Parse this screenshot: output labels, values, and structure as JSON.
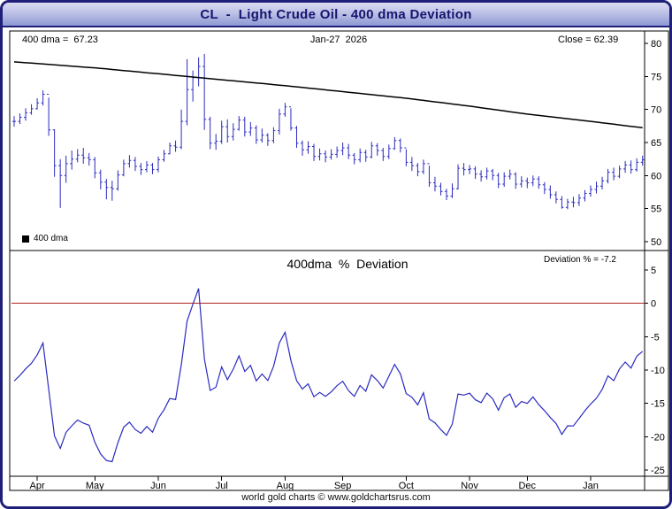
{
  "window": {
    "title": "CL  -  Light Crude Oil - 400 dma Deviation",
    "footer": "world gold charts © www.goldchartsrus.com"
  },
  "chart_data": [
    {
      "type": "ohlc",
      "panel": "price",
      "title": "CL - Light Crude Oil daily bars with 400 dma",
      "labels": {
        "ma": "400 dma =  67.23",
        "date": "Jan-27  2026",
        "close": "Close = 62.39",
        "legend": "400 dma"
      },
      "ylim": [
        50,
        80
      ],
      "yticks": [
        80,
        75,
        70,
        65,
        60,
        55,
        50
      ],
      "colors": {
        "bar": "#2b2bc0",
        "ma": "#000000"
      },
      "months": [
        {
          "label": "Apr",
          "index": 4
        },
        {
          "label": "May",
          "index": 14
        },
        {
          "label": "Jun",
          "index": 25
        },
        {
          "label": "Jul",
          "index": 36
        },
        {
          "label": "Aug",
          "index": 47
        },
        {
          "label": "Sep",
          "index": 57
        },
        {
          "label": "Oct",
          "index": 68
        },
        {
          "label": "Nov",
          "index": 79
        },
        {
          "label": "Dec",
          "index": 89
        },
        {
          "label": "Jan",
          "index": 100
        }
      ],
      "bars_format": "[high, low, close] per bar, open drawn as previous close",
      "bars": [
        [
          69.0,
          67.4,
          68.2
        ],
        [
          69.4,
          67.8,
          68.8
        ],
        [
          70.2,
          68.3,
          69.5
        ],
        [
          70.8,
          69.2,
          70.1
        ],
        [
          71.7,
          70.0,
          71.0
        ],
        [
          72.9,
          70.6,
          72.3
        ],
        [
          71.8,
          66.0,
          66.9
        ],
        [
          67.0,
          59.8,
          61.5
        ],
        [
          62.5,
          55.1,
          60.0
        ],
        [
          63.0,
          58.9,
          61.8
        ],
        [
          63.8,
          60.9,
          62.5
        ],
        [
          64.0,
          62.0,
          63.1
        ],
        [
          64.2,
          61.8,
          62.7
        ],
        [
          63.4,
          61.5,
          62.4
        ],
        [
          62.8,
          59.6,
          60.4
        ],
        [
          60.9,
          57.9,
          59.0
        ],
        [
          59.5,
          56.4,
          58.2
        ],
        [
          59.2,
          56.2,
          58.0
        ],
        [
          60.8,
          57.7,
          60.1
        ],
        [
          62.4,
          59.9,
          61.8
        ],
        [
          63.1,
          61.2,
          62.3
        ],
        [
          62.8,
          60.7,
          61.4
        ],
        [
          61.9,
          60.1,
          60.9
        ],
        [
          62.2,
          60.5,
          61.6
        ],
        [
          61.9,
          60.2,
          60.9
        ],
        [
          62.9,
          60.5,
          62.4
        ],
        [
          63.9,
          62.1,
          63.3
        ],
        [
          65.0,
          63.2,
          64.5
        ],
        [
          65.3,
          63.6,
          64.3
        ],
        [
          70.0,
          64.0,
          68.2
        ],
        [
          77.6,
          67.6,
          73.0
        ],
        [
          75.9,
          71.2,
          74.8
        ],
        [
          77.9,
          73.5,
          76.5
        ],
        [
          78.4,
          66.9,
          68.5
        ],
        [
          68.9,
          64.0,
          64.9
        ],
        [
          66.3,
          63.9,
          65.2
        ],
        [
          68.3,
          64.8,
          67.4
        ],
        [
          68.5,
          65.0,
          65.9
        ],
        [
          67.9,
          65.3,
          67.0
        ],
        [
          69.0,
          66.8,
          68.4
        ],
        [
          68.9,
          65.9,
          66.6
        ],
        [
          68.1,
          66.0,
          67.2
        ],
        [
          67.6,
          64.8,
          65.4
        ],
        [
          67.1,
          65.0,
          66.1
        ],
        [
          66.4,
          64.5,
          65.3
        ],
        [
          67.3,
          64.9,
          66.8
        ],
        [
          70.1,
          66.2,
          69.3
        ],
        [
          71.0,
          68.9,
          70.4
        ],
        [
          70.2,
          66.8,
          67.2
        ],
        [
          67.5,
          64.2,
          64.9
        ],
        [
          65.3,
          63.0,
          63.9
        ],
        [
          65.2,
          63.3,
          64.4
        ],
        [
          64.8,
          62.2,
          62.9
        ],
        [
          64.1,
          62.3,
          63.3
        ],
        [
          63.8,
          62.0,
          62.8
        ],
        [
          64.0,
          62.4,
          63.2
        ],
        [
          64.4,
          62.7,
          63.8
        ],
        [
          65.0,
          63.1,
          64.2
        ],
        [
          64.8,
          62.5,
          63.1
        ],
        [
          63.4,
          61.7,
          62.4
        ],
        [
          64.1,
          62.0,
          63.5
        ],
        [
          63.9,
          62.1,
          62.8
        ],
        [
          65.1,
          62.6,
          64.5
        ],
        [
          64.9,
          63.0,
          63.8
        ],
        [
          64.2,
          62.2,
          62.9
        ],
        [
          64.7,
          62.5,
          64.1
        ],
        [
          65.8,
          63.9,
          65.3
        ],
        [
          65.6,
          63.5,
          64.2
        ],
        [
          64.0,
          61.4,
          62.0
        ],
        [
          62.8,
          60.7,
          61.5
        ],
        [
          61.9,
          59.9,
          60.6
        ],
        [
          62.4,
          60.2,
          61.8
        ],
        [
          61.5,
          58.3,
          58.9
        ],
        [
          59.8,
          57.6,
          58.4
        ],
        [
          58.9,
          57.0,
          57.6
        ],
        [
          58.0,
          56.3,
          56.9
        ],
        [
          58.8,
          56.6,
          58.0
        ],
        [
          61.7,
          57.9,
          61.1
        ],
        [
          61.9,
          60.0,
          60.9
        ],
        [
          61.6,
          60.2,
          61.0
        ],
        [
          61.4,
          59.5,
          60.2
        ],
        [
          60.8,
          59.1,
          59.8
        ],
        [
          61.2,
          59.4,
          60.7
        ],
        [
          61.0,
          59.3,
          60.0
        ],
        [
          60.4,
          58.1,
          58.7
        ],
        [
          60.5,
          58.3,
          59.9
        ],
        [
          60.9,
          59.4,
          60.2
        ],
        [
          60.5,
          58.0,
          58.7
        ],
        [
          59.9,
          58.2,
          59.2
        ],
        [
          59.7,
          58.1,
          58.9
        ],
        [
          60.0,
          58.4,
          59.5
        ],
        [
          59.9,
          58.0,
          58.6
        ],
        [
          59.0,
          57.2,
          57.9
        ],
        [
          58.5,
          56.5,
          57.1
        ],
        [
          57.6,
          55.8,
          56.4
        ],
        [
          56.9,
          55.0,
          55.2
        ],
        [
          56.5,
          54.9,
          56.0
        ],
        [
          56.8,
          55.2,
          55.9
        ],
        [
          57.2,
          55.4,
          56.6
        ],
        [
          57.8,
          56.1,
          57.3
        ],
        [
          58.5,
          56.8,
          57.9
        ],
        [
          59.1,
          57.3,
          58.4
        ],
        [
          59.8,
          57.9,
          59.2
        ],
        [
          61.0,
          58.8,
          60.5
        ],
        [
          61.2,
          59.3,
          59.9
        ],
        [
          61.5,
          59.6,
          61.0
        ],
        [
          62.2,
          60.4,
          61.6
        ],
        [
          62.3,
          60.3,
          60.9
        ],
        [
          62.6,
          60.6,
          62.0
        ],
        [
          63.0,
          61.5,
          62.39
        ]
      ],
      "ma400": [
        77.2,
        77.14,
        77.07,
        77.01,
        76.94,
        76.88,
        76.81,
        76.75,
        76.69,
        76.62,
        76.56,
        76.49,
        76.43,
        76.36,
        76.3,
        76.22,
        76.14,
        76.05,
        75.97,
        75.89,
        75.81,
        75.73,
        75.65,
        75.56,
        75.48,
        75.4,
        75.32,
        75.24,
        75.15,
        75.07,
        74.99,
        74.91,
        74.83,
        74.75,
        74.66,
        74.58,
        74.5,
        74.42,
        74.34,
        74.25,
        74.17,
        74.09,
        74.01,
        73.93,
        73.85,
        73.76,
        73.68,
        73.6,
        73.51,
        73.42,
        73.33,
        73.24,
        73.15,
        73.06,
        72.97,
        72.88,
        72.79,
        72.7,
        72.61,
        72.52,
        72.43,
        72.34,
        72.25,
        72.15,
        72.06,
        71.97,
        71.88,
        71.79,
        71.7,
        71.59,
        71.48,
        71.37,
        71.26,
        71.15,
        71.05,
        70.94,
        70.83,
        70.72,
        70.61,
        70.5,
        70.38,
        70.26,
        70.14,
        70.02,
        69.9,
        69.78,
        69.66,
        69.54,
        69.42,
        69.3,
        69.2,
        69.1,
        69.0,
        68.9,
        68.8,
        68.7,
        68.6,
        68.5,
        68.4,
        68.3,
        68.2,
        68.09,
        67.98,
        67.88,
        67.77,
        67.66,
        67.55,
        67.45,
        67.34,
        67.23
      ]
    },
    {
      "type": "line",
      "panel": "deviation",
      "title": "400dma  %  Deviation",
      "value_label": "Deviation % = -7.2",
      "ylim": [
        -25,
        5
      ],
      "yticks": [
        5,
        0,
        -5,
        -10,
        -15,
        -20,
        -25
      ],
      "colors": {
        "line": "#2b2bc0",
        "zero": "#b22222"
      },
      "derivation": "deviation[i] = (bars[i].close - ma400[i]) / ma400[i] * 100; latest = -7.2"
    }
  ]
}
